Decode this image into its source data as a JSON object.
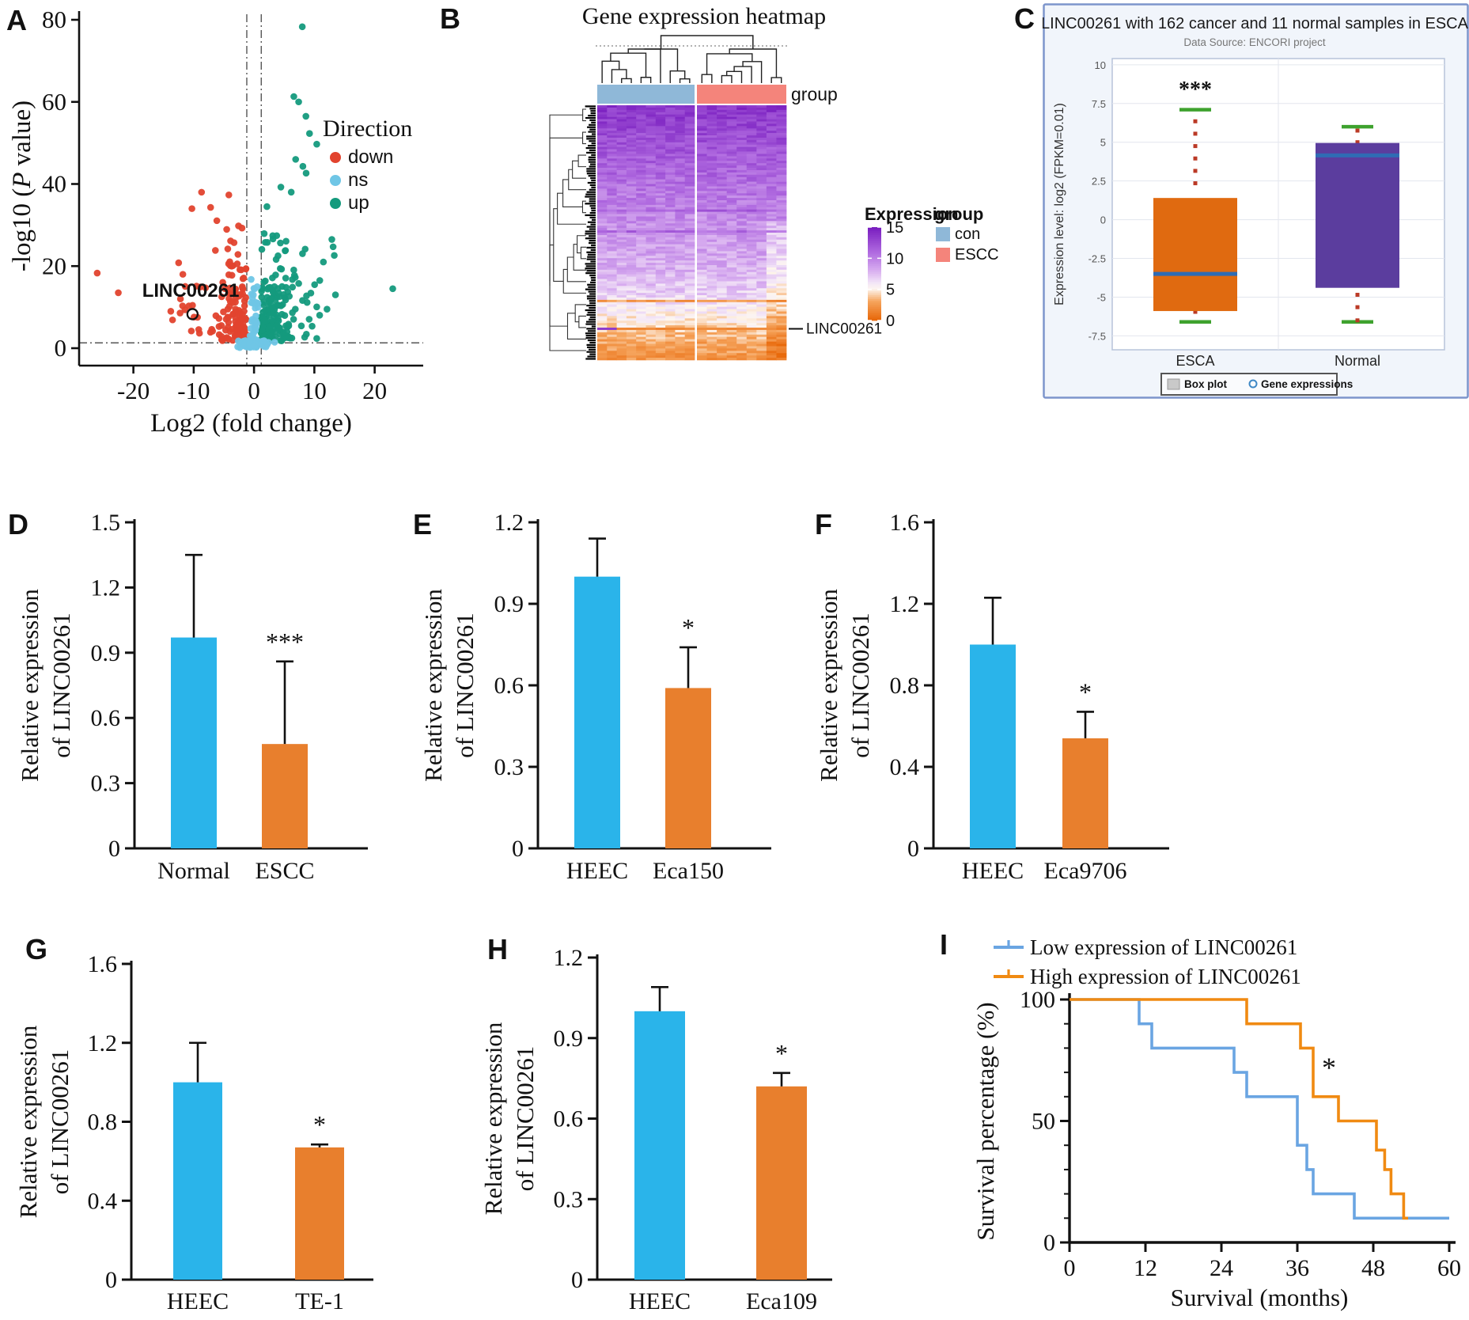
{
  "chart_data": [
    {
      "id": "A",
      "panel_label": "A",
      "type": "scatter",
      "subtype": "volcano",
      "xlabel": "Log2 (fold change)",
      "ylabel_prefix": "-log10 (",
      "ylabel_italic": "P",
      "ylabel_suffix": " value)",
      "xlim": [
        -29,
        27
      ],
      "ylim": [
        -3,
        83
      ],
      "xticks": [
        -20,
        -10,
        0,
        10,
        20
      ],
      "yticks": [
        0,
        20,
        40,
        60,
        80
      ],
      "legend_title": "Direction",
      "legend": [
        {
          "label": "down",
          "color": "#E2432E"
        },
        {
          "label": "ns",
          "color": "#6FC6E6"
        },
        {
          "label": "up",
          "color": "#149A7D"
        }
      ],
      "threshold_vlines": [
        -1.2,
        1.2
      ],
      "threshold_hline": 1.3,
      "annotation": {
        "text": "LINC00261",
        "x": -10.5,
        "y": 12.5,
        "marker_x": -10.2,
        "marker_y": 8.3
      },
      "extreme_points": {
        "down": [
          [
            -26,
            18.3
          ],
          [
            -22.5,
            13.5
          ],
          [
            -8.7,
            38
          ],
          [
            -10.3,
            34
          ],
          [
            -7.2,
            34.3
          ],
          [
            -12.5,
            20.8
          ],
          [
            -11.8,
            18
          ],
          [
            -13.8,
            9
          ],
          [
            -12.2,
            12
          ],
          [
            -10.8,
            10.3
          ]
        ],
        "up": [
          [
            8,
            78.3
          ],
          [
            6.6,
            61.3
          ],
          [
            7.4,
            60
          ],
          [
            8.6,
            56.5
          ],
          [
            9.2,
            52.3
          ],
          [
            10.4,
            49.7
          ],
          [
            6.9,
            46
          ],
          [
            8.1,
            44.3
          ],
          [
            23,
            14.5
          ],
          [
            12.9,
            26.5
          ],
          [
            11.5,
            21
          ],
          [
            13.5,
            13
          ],
          [
            10.9,
            16.5
          ],
          [
            12.1,
            9.5
          ]
        ]
      },
      "cluster_params": {
        "seed": 7,
        "n_down": 150,
        "n_up": 185,
        "n_ns_band": 95,
        "n_ns_column": 55
      }
    },
    {
      "id": "B",
      "panel_label": "B",
      "type": "heatmap",
      "title": "Gene expression heatmap",
      "group_row_label": "group",
      "groups": [
        {
          "label": "con",
          "color": "#8FB8D8",
          "n_cols": 10
        },
        {
          "label": "ESCC",
          "color": "#F4847B",
          "n_cols": 9
        }
      ],
      "legend_expression_title": "Expression",
      "colorbar_ticks": [
        15,
        10,
        5,
        0
      ],
      "color_scale": [
        {
          "v": 15,
          "color": "#7A1FC0"
        },
        {
          "v": 11,
          "color": "#B06AE0"
        },
        {
          "v": 8,
          "color": "#D8AEF0"
        },
        {
          "v": 6,
          "color": "#F3E6F7"
        },
        {
          "v": 5,
          "color": "#FDF6F0"
        },
        {
          "v": 3,
          "color": "#F6A55E"
        },
        {
          "v": 0,
          "color": "#E8690B"
        }
      ],
      "gene_annotation": {
        "text": "LINC00261",
        "row_fraction": 0.875
      },
      "n_rows": 110,
      "row_value_profile": [
        [
          0,
          13.8
        ],
        [
          0.3,
          10.8
        ],
        [
          0.5,
          9.0
        ],
        [
          0.65,
          7.8
        ],
        [
          0.75,
          6.5
        ],
        [
          0.82,
          5.2
        ],
        [
          0.875,
          4.0
        ],
        [
          0.92,
          3.0
        ],
        [
          1,
          2.0
        ]
      ],
      "seed": 11
    },
    {
      "id": "C",
      "panel_label": "C",
      "type": "boxplot",
      "title": "LINC00261 with 162 cancer and 11 normal samples in ESCA",
      "subtitle": "Data Source: ENCORI project",
      "ylabel": "Expression level:  log2 (FPKM=0.01)",
      "ylim": [
        -8.4,
        10.4
      ],
      "yticks": [
        10,
        7.5,
        5,
        2.5,
        0,
        -2.5,
        -5,
        -7.5
      ],
      "significance": "***",
      "categories": [
        "ESCA",
        "Normal"
      ],
      "boxes": [
        {
          "label": "ESCA",
          "color": "#E06A10",
          "q1": -5.9,
          "median": -3.5,
          "q3": 1.4,
          "whisker_high": 7.1,
          "whisker_low": -6.6,
          "dots_above": [
            6.35,
            5.55,
            4.75,
            3.95,
            3.15,
            2.35
          ],
          "dots_below": [
            -5.95
          ]
        },
        {
          "label": "Normal",
          "color": "#5B3D9E",
          "q1": -4.4,
          "median": 4.15,
          "q3": 4.95,
          "whisker_high": 6.0,
          "whisker_low": -6.6,
          "dots_above": [
            5.75,
            5.0
          ],
          "dots_below": [
            -4.85,
            -5.65,
            -6.5
          ]
        }
      ],
      "median_color": "#2F6CB4",
      "whisker_cap_color": "#3EA22E",
      "dot_color": "#BB3A26",
      "footer_legend": [
        {
          "label": "Box plot",
          "marker": "square",
          "marker_color": "#C9C9C9"
        },
        {
          "label": "Gene expressions",
          "marker": "circle",
          "marker_color": "#3F88C5"
        }
      ]
    },
    {
      "id": "D",
      "panel_label": "D",
      "type": "bar",
      "ylabel_lines": [
        "Relative expression",
        "of LINC00261"
      ],
      "ylim": [
        0,
        1.5
      ],
      "yticks": [
        0,
        0.3,
        0.6,
        0.9,
        1.2,
        1.5
      ],
      "categories": [
        "Normal",
        "ESCC"
      ],
      "bars": [
        {
          "label": "Normal",
          "value": 0.97,
          "error": 0.38,
          "color": "#2AB4EA",
          "sig": ""
        },
        {
          "label": "ESCC",
          "value": 0.48,
          "error": 0.38,
          "color": "#E87F2D",
          "sig": "***"
        }
      ]
    },
    {
      "id": "E",
      "panel_label": "E",
      "type": "bar",
      "ylabel_lines": [
        "Relative expression",
        "of LINC00261"
      ],
      "ylim": [
        0,
        1.2
      ],
      "yticks": [
        0,
        0.3,
        0.6,
        0.9,
        1.2
      ],
      "categories": [
        "HEEC",
        "Eca150"
      ],
      "bars": [
        {
          "label": "HEEC",
          "value": 1.0,
          "error": 0.14,
          "color": "#2AB4EA",
          "sig": ""
        },
        {
          "label": "Eca150",
          "value": 0.59,
          "error": 0.15,
          "color": "#E87F2D",
          "sig": "*"
        }
      ]
    },
    {
      "id": "F",
      "panel_label": "F",
      "type": "bar",
      "ylabel_lines": [
        "Relative expression",
        "of LINC00261"
      ],
      "ylim": [
        0,
        1.6
      ],
      "yticks": [
        0,
        0.4,
        0.8,
        1.2,
        1.6
      ],
      "categories": [
        "HEEC",
        "Eca9706"
      ],
      "bars": [
        {
          "label": "HEEC",
          "value": 1.0,
          "error": 0.23,
          "color": "#2AB4EA",
          "sig": ""
        },
        {
          "label": "Eca9706",
          "value": 0.54,
          "error": 0.13,
          "color": "#E87F2D",
          "sig": "*"
        }
      ]
    },
    {
      "id": "G",
      "panel_label": "G",
      "type": "bar",
      "ylabel_lines": [
        "Relative expression",
        "of LINC00261"
      ],
      "ylim": [
        0,
        1.6
      ],
      "yticks": [
        0,
        0.4,
        0.8,
        1.2,
        1.6
      ],
      "categories": [
        "HEEC",
        "TE-1"
      ],
      "bars": [
        {
          "label": "HEEC",
          "value": 1.0,
          "error": 0.2,
          "color": "#2AB4EA",
          "sig": ""
        },
        {
          "label": "TE-1",
          "value": 0.67,
          "error": 0.015,
          "color": "#E87F2D",
          "sig": "*"
        }
      ]
    },
    {
      "id": "H",
      "panel_label": "H",
      "type": "bar",
      "ylabel_lines": [
        "Relative expression",
        "of LINC00261"
      ],
      "ylim": [
        0,
        1.2
      ],
      "yticks": [
        0,
        0.3,
        0.6,
        0.9,
        1.2
      ],
      "categories": [
        "HEEC",
        "Eca109"
      ],
      "bars": [
        {
          "label": "HEEC",
          "value": 1.0,
          "error": 0.09,
          "color": "#2AB4EA",
          "sig": ""
        },
        {
          "label": "Eca109",
          "value": 0.72,
          "error": 0.05,
          "color": "#E87F2D",
          "sig": "*"
        }
      ]
    },
    {
      "id": "I",
      "panel_label": "I",
      "type": "line",
      "subtype": "km_survival",
      "xlabel": "Survival (months)",
      "ylabel": "Survival percentage (%)",
      "xlim": [
        0,
        60
      ],
      "ylim": [
        0,
        100
      ],
      "xticks": [
        0,
        12,
        24,
        36,
        48,
        60
      ],
      "yticks": [
        0,
        50,
        100
      ],
      "significance": "*",
      "sig_pos": {
        "x": 41,
        "y": 68
      },
      "series": [
        {
          "name": "Low expression of LINC00261",
          "color": "#6AA5E2",
          "steps": [
            [
              0,
              100
            ],
            [
              11,
              100
            ],
            [
              11,
              90
            ],
            [
              13,
              90
            ],
            [
              13,
              80
            ],
            [
              26,
              80
            ],
            [
              26,
              70
            ],
            [
              28,
              70
            ],
            [
              28,
              60
            ],
            [
              36,
              60
            ],
            [
              36,
              40
            ],
            [
              37.5,
              40
            ],
            [
              37.5,
              30
            ],
            [
              38.5,
              30
            ],
            [
              38.5,
              20
            ],
            [
              45,
              20
            ],
            [
              45,
              10
            ],
            [
              60,
              10
            ]
          ]
        },
        {
          "name": "High expression of LINC00261",
          "color": "#F08A12",
          "steps": [
            [
              0,
              100
            ],
            [
              28,
              100
            ],
            [
              28,
              90
            ],
            [
              36.5,
              90
            ],
            [
              36.5,
              80
            ],
            [
              38.5,
              80
            ],
            [
              38.5,
              60
            ],
            [
              42.5,
              60
            ],
            [
              42.5,
              50
            ],
            [
              48.5,
              50
            ],
            [
              48.5,
              38
            ],
            [
              49.8,
              38
            ],
            [
              49.8,
              30
            ],
            [
              50.8,
              30
            ],
            [
              50.8,
              20
            ],
            [
              52.8,
              20
            ],
            [
              52.8,
              10
            ],
            [
              53.5,
              10
            ]
          ]
        }
      ]
    }
  ]
}
